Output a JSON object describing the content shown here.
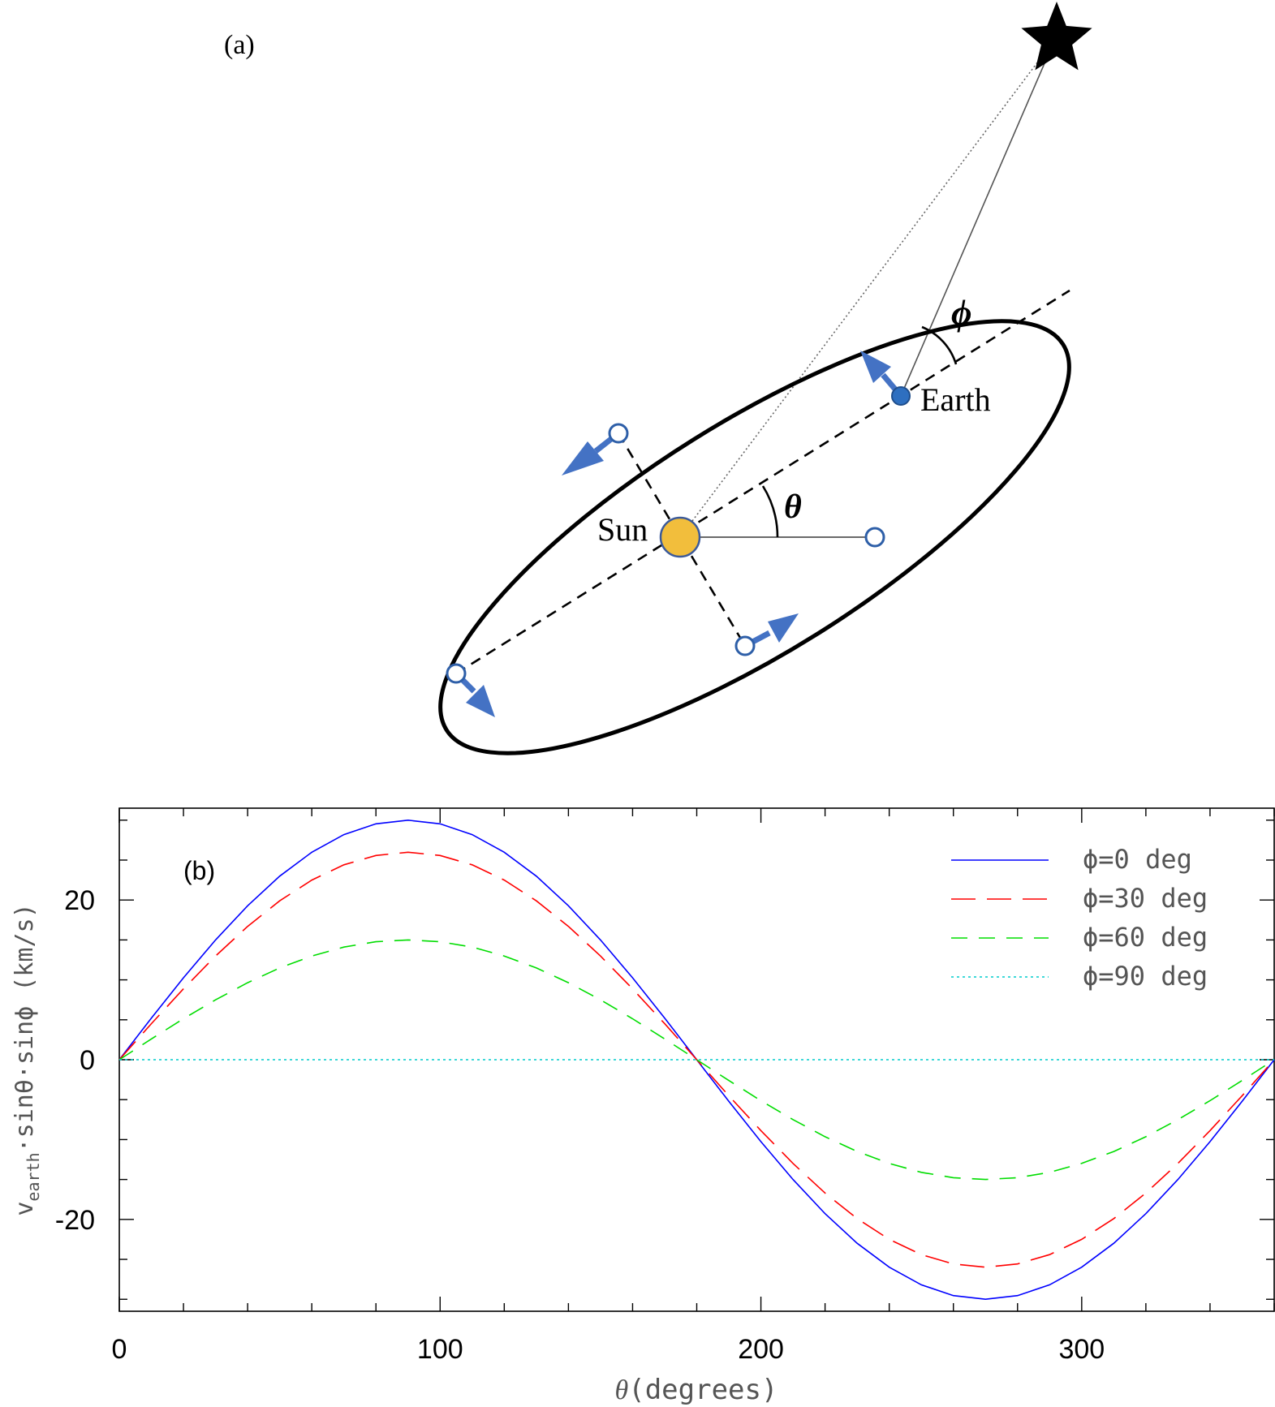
{
  "panel_a": {
    "label": "(a)",
    "sun_label": "Sun",
    "earth_label": "Earth",
    "theta_symbol": "θ",
    "phi_symbol": "ϕ",
    "star_icon": "star-icon",
    "sun_color": "#F2BE3C",
    "earth_color": "#2E6FC0",
    "arrow_color": "#4472C4"
  },
  "chart_data": {
    "type": "line",
    "panel_label": "(b)",
    "xlabel_symbol": "θ",
    "xlabel_rest": "(degrees)",
    "ylabel_v": "v",
    "ylabel_sub": "earth",
    "ylabel_rest": "·sinθ·sinϕ  (km/s)",
    "xlim": [
      0,
      360
    ],
    "ylim": [
      -31.5,
      31.5
    ],
    "xticks": [
      0,
      100,
      200,
      300
    ],
    "xtick_labels": [
      "0",
      "100",
      "200",
      "300"
    ],
    "yticks": [
      -20,
      0,
      20
    ],
    "ytick_labels": [
      "-20",
      "0",
      "20"
    ],
    "x_minor_step": 20,
    "y_minor_step": 5,
    "grid": false,
    "legend_position": "top-right",
    "amplitude_note": "v_earth ≈ 30 km/s",
    "x": [
      0,
      10,
      20,
      30,
      40,
      50,
      60,
      70,
      80,
      90,
      100,
      110,
      120,
      130,
      140,
      150,
      160,
      170,
      180,
      190,
      200,
      210,
      220,
      230,
      240,
      250,
      260,
      270,
      280,
      290,
      300,
      310,
      320,
      330,
      340,
      350,
      360
    ],
    "series": [
      {
        "name": "ϕ=0 deg",
        "color": "#0000FF",
        "dash": "solid",
        "values": [
          0,
          5.21,
          10.26,
          15.0,
          19.28,
          22.98,
          25.98,
          28.19,
          29.54,
          30.0,
          29.54,
          28.19,
          25.98,
          22.98,
          19.28,
          15.0,
          10.26,
          5.21,
          0,
          -5.21,
          -10.26,
          -15.0,
          -19.28,
          -22.98,
          -25.98,
          -28.19,
          -29.54,
          -30.0,
          -29.54,
          -28.19,
          -25.98,
          -22.98,
          -19.28,
          -15.0,
          -10.26,
          -5.21,
          0
        ]
      },
      {
        "name": "ϕ=30 deg",
        "color": "#FF0000",
        "dash": "long",
        "values": [
          0,
          4.51,
          8.88,
          12.99,
          16.7,
          19.9,
          22.5,
          24.41,
          25.58,
          25.98,
          25.58,
          24.41,
          22.5,
          19.9,
          16.7,
          12.99,
          8.88,
          4.51,
          0,
          -4.51,
          -8.88,
          -12.99,
          -16.7,
          -19.9,
          -22.5,
          -24.41,
          -25.58,
          -25.98,
          -25.58,
          -24.41,
          -22.5,
          -19.9,
          -16.7,
          -12.99,
          -8.88,
          -4.51,
          0
        ]
      },
      {
        "name": "ϕ=60 deg",
        "color": "#00DD00",
        "dash": "medium",
        "values": [
          0,
          2.6,
          5.13,
          7.5,
          9.64,
          11.49,
          12.99,
          14.1,
          14.77,
          15.0,
          14.77,
          14.1,
          12.99,
          11.49,
          9.64,
          7.5,
          5.13,
          2.6,
          0,
          -2.6,
          -5.13,
          -7.5,
          -9.64,
          -11.49,
          -12.99,
          -14.1,
          -14.77,
          -15.0,
          -14.77,
          -14.1,
          -12.99,
          -11.49,
          -9.64,
          -7.5,
          -5.13,
          -2.6,
          0
        ]
      },
      {
        "name": "ϕ=90 deg",
        "color": "#00CCCC",
        "dash": "dotted",
        "values": [
          0,
          0,
          0,
          0,
          0,
          0,
          0,
          0,
          0,
          0,
          0,
          0,
          0,
          0,
          0,
          0,
          0,
          0,
          0,
          0,
          0,
          0,
          0,
          0,
          0,
          0,
          0,
          0,
          0,
          0,
          0,
          0,
          0,
          0,
          0,
          0,
          0
        ]
      }
    ]
  }
}
